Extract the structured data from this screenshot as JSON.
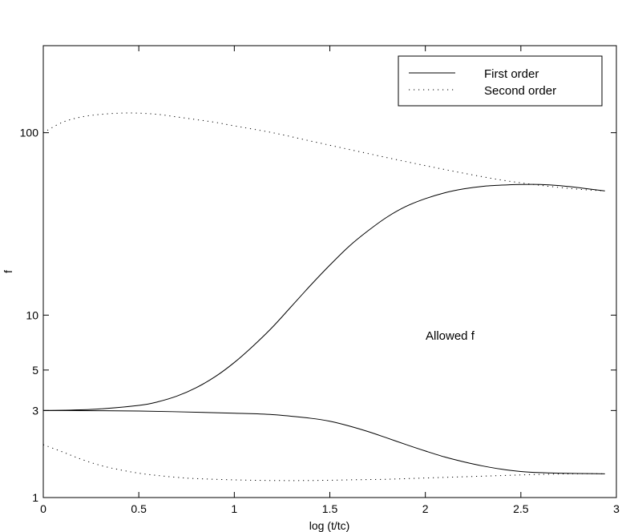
{
  "chart_data": {
    "type": "line",
    "title": "",
    "xlabel": "log (t/tc)",
    "ylabel": "f",
    "xlim": [
      0,
      3
    ],
    "ylim": [
      1,
      300
    ],
    "y_scale": "log",
    "grid": false,
    "legend_position": "top-right",
    "x_ticks": [
      0,
      0.5,
      1,
      1.5,
      2,
      2.5,
      3
    ],
    "x_tick_labels": [
      "0",
      "0.5",
      "1",
      "1.5",
      "2",
      "2.5",
      "3"
    ],
    "y_ticks": [
      1,
      3,
      5,
      10,
      100
    ],
    "y_tick_labels": [
      "1",
      "3",
      "5",
      "10",
      "100"
    ],
    "legend": [
      {
        "label": "First order",
        "style": "solid"
      },
      {
        "label": "Second order",
        "style": "dotted"
      }
    ],
    "annotations": [
      {
        "text": "Allowed f",
        "x": 2.0,
        "y": 8.0
      }
    ],
    "series": [
      {
        "legend_index": 0,
        "style": "solid",
        "branch": "upper",
        "points": [
          [
            0,
            3.0
          ],
          [
            0.25,
            3.04
          ],
          [
            0.5,
            3.2
          ],
          [
            0.6,
            3.35
          ],
          [
            0.7,
            3.6
          ],
          [
            0.8,
            4.0
          ],
          [
            0.9,
            4.6
          ],
          [
            1.0,
            5.5
          ],
          [
            1.1,
            6.8
          ],
          [
            1.2,
            8.6
          ],
          [
            1.3,
            11.2
          ],
          [
            1.4,
            14.6
          ],
          [
            1.5,
            18.8
          ],
          [
            1.6,
            23.8
          ],
          [
            1.7,
            29.0
          ],
          [
            1.8,
            34.5
          ],
          [
            1.9,
            39.5
          ],
          [
            2.0,
            43.5
          ],
          [
            2.1,
            46.8
          ],
          [
            2.2,
            49.2
          ],
          [
            2.3,
            50.8
          ],
          [
            2.4,
            51.6
          ],
          [
            2.5,
            52.0
          ],
          [
            2.6,
            52.0
          ],
          [
            2.7,
            51.3
          ],
          [
            2.8,
            50.0
          ],
          [
            2.9,
            48.5
          ],
          [
            2.94,
            48.0
          ]
        ]
      },
      {
        "legend_index": 0,
        "style": "solid",
        "branch": "lower",
        "points": [
          [
            0,
            3.0
          ],
          [
            0.5,
            2.98
          ],
          [
            1.0,
            2.9
          ],
          [
            1.2,
            2.85
          ],
          [
            1.4,
            2.72
          ],
          [
            1.5,
            2.62
          ],
          [
            1.6,
            2.47
          ],
          [
            1.7,
            2.3
          ],
          [
            1.8,
            2.12
          ],
          [
            1.9,
            1.95
          ],
          [
            2.0,
            1.8
          ],
          [
            2.1,
            1.67
          ],
          [
            2.2,
            1.57
          ],
          [
            2.3,
            1.49
          ],
          [
            2.4,
            1.43
          ],
          [
            2.5,
            1.39
          ],
          [
            2.6,
            1.37
          ],
          [
            2.7,
            1.36
          ],
          [
            2.8,
            1.355
          ],
          [
            2.94,
            1.35
          ]
        ]
      },
      {
        "legend_index": 1,
        "style": "dotted",
        "branch": "upper",
        "points": [
          [
            0,
            100
          ],
          [
            0.1,
            114
          ],
          [
            0.2,
            122
          ],
          [
            0.3,
            126
          ],
          [
            0.4,
            128
          ],
          [
            0.5,
            128
          ],
          [
            0.6,
            126
          ],
          [
            0.7,
            122
          ],
          [
            0.8,
            118
          ],
          [
            0.9,
            114
          ],
          [
            1.0,
            109
          ],
          [
            1.2,
            100
          ],
          [
            1.4,
            90
          ],
          [
            1.6,
            81
          ],
          [
            1.8,
            73
          ],
          [
            2.0,
            66
          ],
          [
            2.2,
            60
          ],
          [
            2.4,
            55
          ],
          [
            2.6,
            51.5
          ],
          [
            2.8,
            49
          ],
          [
            2.94,
            48
          ]
        ]
      },
      {
        "legend_index": 1,
        "style": "dotted",
        "branch": "lower",
        "points": [
          [
            0,
            1.95
          ],
          [
            0.1,
            1.78
          ],
          [
            0.2,
            1.62
          ],
          [
            0.3,
            1.5
          ],
          [
            0.4,
            1.42
          ],
          [
            0.5,
            1.36
          ],
          [
            0.6,
            1.32
          ],
          [
            0.7,
            1.29
          ],
          [
            0.8,
            1.27
          ],
          [
            1.0,
            1.25
          ],
          [
            1.2,
            1.24
          ],
          [
            1.4,
            1.24
          ],
          [
            1.6,
            1.25
          ],
          [
            1.8,
            1.26
          ],
          [
            2.0,
            1.28
          ],
          [
            2.2,
            1.3
          ],
          [
            2.4,
            1.32
          ],
          [
            2.6,
            1.34
          ],
          [
            2.8,
            1.35
          ],
          [
            2.94,
            1.35
          ]
        ]
      }
    ]
  }
}
